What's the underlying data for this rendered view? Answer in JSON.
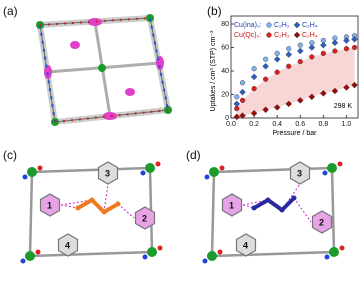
{
  "panels": {
    "a": {
      "label": "(a)"
    },
    "b": {
      "label": "(b)"
    },
    "c": {
      "label": "(c)",
      "sites": [
        "1",
        "2",
        "3",
        "4"
      ]
    },
    "d": {
      "label": "(d)",
      "sites": [
        "1",
        "2",
        "3",
        "4"
      ]
    }
  },
  "chart_data": {
    "type": "scatter",
    "y_label": "Uptakes / cm³ (STP) cm⁻³",
    "x_label": "Pressure / bar",
    "annotation": "298 K",
    "x": [
      0.05,
      0.1,
      0.2,
      0.3,
      0.4,
      0.5,
      0.6,
      0.7,
      0.8,
      0.9,
      1.0,
      1.07
    ],
    "xlim": [
      0,
      1.1
    ],
    "ylim": [
      0,
      80
    ],
    "xticks": [
      {
        "value": 0,
        "label": "0.0"
      },
      0.2,
      0.4,
      0.6,
      0.8,
      {
        "value": 1,
        "label": "1.0"
      }
    ],
    "yticks": [
      0,
      20,
      40,
      60,
      80
    ],
    "shade_color": "#f6cccc",
    "groups": [
      {
        "label": "Cu(ina)₂:",
        "color": "#1a3fa8",
        "series": [
          {
            "name": "C₂H₂",
            "color": "#7fb2ee",
            "marker": "circle",
            "values": [
              18,
              30,
              42,
              50,
              55,
              59,
              62,
              64,
              66,
              68,
              69,
              70
            ]
          },
          {
            "name": "C₂H₄",
            "color": "#2e5cc0",
            "marker": "diamond",
            "values": [
              12,
              22,
              35,
              44,
              50,
              54,
              57,
              60,
              62,
              64,
              66,
              67
            ]
          }
        ]
      },
      {
        "label": "Cu(Qc)₂:",
        "color": "#cc1111",
        "series": [
          {
            "name": "C₂H₂",
            "color": "#e02020",
            "marker": "circle",
            "values": [
              8,
              15,
              25,
              33,
              39,
              44,
              48,
              52,
              55,
              57,
              59,
              60
            ]
          },
          {
            "name": "C₂H₄",
            "color": "#9a0c0c",
            "marker": "diamond",
            "values": [
              1,
              2,
              4,
              7,
              9,
              12,
              15,
              18,
              21,
              23,
              26,
              28
            ]
          }
        ]
      }
    ]
  }
}
